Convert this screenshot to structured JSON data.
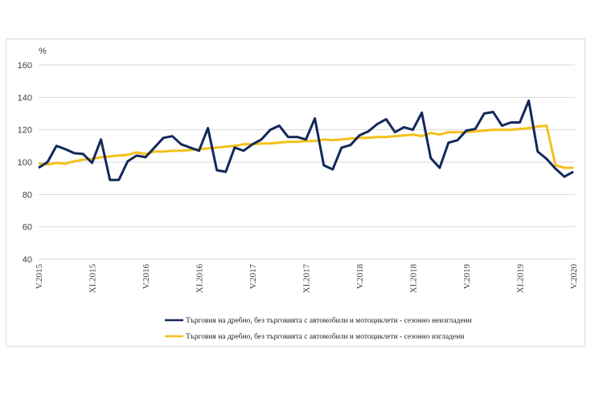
{
  "chart_data": {
    "type": "line",
    "title": "",
    "ylabel": "%",
    "xlabel": "",
    "ylim": [
      40,
      160
    ],
    "yticks": [
      "160",
      "140",
      "120",
      "100",
      "80",
      "60",
      "40"
    ],
    "ytick_values": [
      160,
      140,
      120,
      100,
      80,
      60,
      40
    ],
    "grid": true,
    "legend_position": "bottom",
    "xtick_labels": [
      "V.2015",
      "XI.2015",
      "V.2016",
      "XI.2016",
      "V.2017",
      "XI.2017",
      "V.2018",
      "XI.2018",
      "V.2019",
      "XI.2019",
      "V.2020"
    ],
    "xtick_every_months": 6,
    "x_months_count": 61,
    "series": [
      {
        "name": "Търговия на дребно, без търговията с автомобили и мотоциклети - сезонно неизгладени",
        "color": "#13285a",
        "values": [
          96.5,
          100,
          110,
          108,
          105.5,
          105,
          99.5,
          114,
          89,
          89,
          100.5,
          104,
          103,
          109,
          115,
          116,
          111,
          109,
          107,
          121,
          95,
          94,
          109,
          107,
          111,
          114,
          120,
          122.5,
          115.5,
          115.5,
          114,
          127,
          98,
          95.5,
          109,
          110.5,
          116.5,
          119,
          123.5,
          126.5,
          118.5,
          121.5,
          120,
          130.5,
          102.5,
          96.5,
          112,
          113.5,
          119.5,
          120.5,
          130,
          131,
          122.5,
          124.5,
          124.5,
          138,
          106.5,
          102,
          96,
          91,
          94
        ]
      },
      {
        "name": "Търговия на дребно, без търговията с автомобили и мотоциклети - сезонно изгладени",
        "color": "#f5c01c",
        "values": [
          99,
          98.5,
          99.5,
          99,
          100.5,
          101.5,
          102,
          103,
          103.5,
          104,
          104.5,
          106,
          105,
          106.5,
          106.5,
          107,
          107,
          107.5,
          108,
          108.5,
          109,
          109.5,
          110,
          111,
          111,
          111.5,
          111.5,
          112,
          112.5,
          112.5,
          113,
          113,
          114,
          113.5,
          114,
          114.5,
          115,
          115,
          115.5,
          115.5,
          116,
          116.5,
          117,
          116,
          118,
          117,
          118.5,
          118.5,
          118.5,
          119,
          119.5,
          120,
          120,
          120,
          120.5,
          121,
          122,
          122.5,
          98,
          96.5,
          96.5
        ]
      }
    ]
  }
}
